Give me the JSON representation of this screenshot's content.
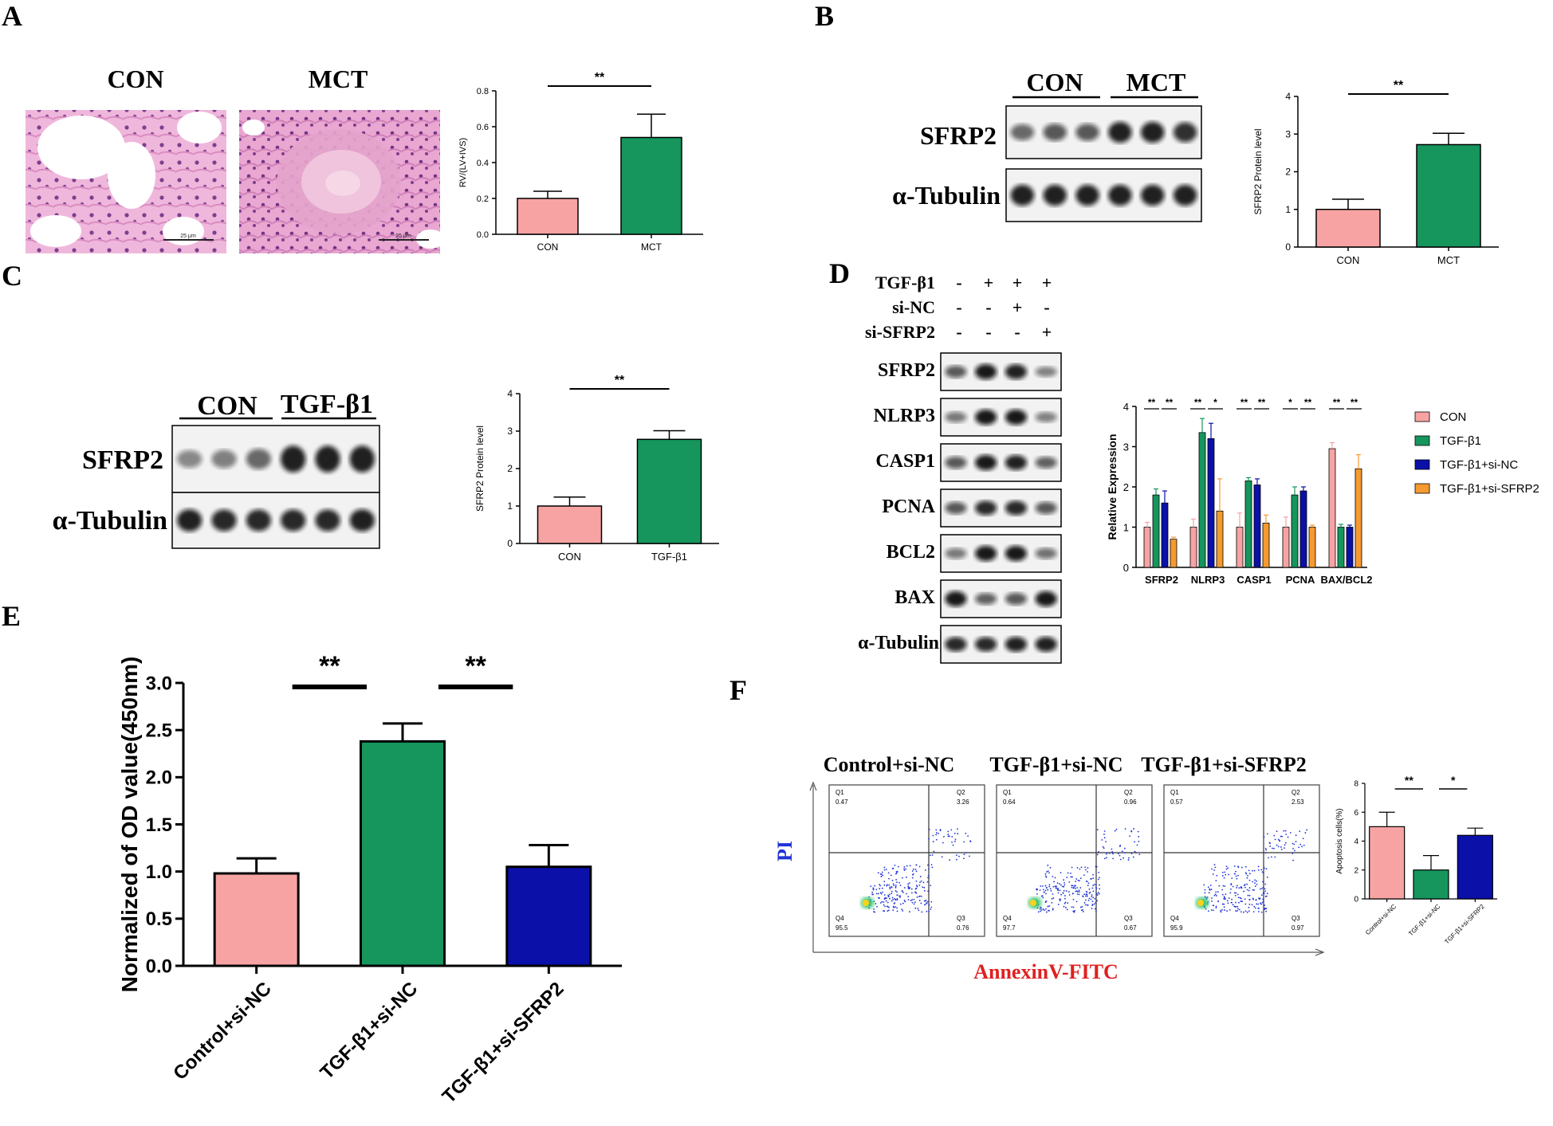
{
  "panels": {
    "A": {
      "letter": "A",
      "img_labels": [
        "CON",
        "MCT"
      ],
      "scale_bar": "25 μm"
    },
    "B": {
      "letter": "B",
      "blot_groups": [
        "CON",
        "MCT"
      ],
      "bands": [
        "SFRP2",
        "α-Tubulin"
      ]
    },
    "C": {
      "letter": "C",
      "blot_groups": [
        "CON",
        "TGF-β1"
      ],
      "bands": [
        "SFRP2",
        "α-Tubulin"
      ]
    },
    "D": {
      "letter": "D",
      "treat_rows": [
        {
          "label": "TGF-β1",
          "signs": [
            "-",
            "+",
            "+",
            "+"
          ]
        },
        {
          "label": "si-NC",
          "signs": [
            "-",
            "-",
            "+",
            "-"
          ]
        },
        {
          "label": "si-SFRP2",
          "signs": [
            "-",
            "-",
            "-",
            "+"
          ]
        }
      ],
      "bands": [
        "SFRP2",
        "NLRP3",
        "CASP1",
        "PCNA",
        "BCL2",
        "BAX",
        "α-Tubulin"
      ]
    },
    "E": {
      "letter": "E"
    },
    "F": {
      "letter": "F",
      "flow_titles": [
        "Control+si-NC",
        "TGF-β1+si-NC",
        "TGF-β1+si-SFRP2"
      ],
      "y_axis": "PI",
      "x_axis": "AnnexinV-FITC"
    }
  },
  "flow_quadrants": [
    {
      "Q1": "0.47",
      "Q2": "3.26",
      "Q3": "0.76",
      "Q4": "95.5"
    },
    {
      "Q1": "0.64",
      "Q2": "0.96",
      "Q3": "0.67",
      "Q4": "97.7"
    },
    {
      "Q1": "0.57",
      "Q2": "2.53",
      "Q3": "0.97",
      "Q4": "95.9"
    }
  ],
  "colors": {
    "pink": "#f7a3a3",
    "green": "#16955d",
    "navy": "#0b10a8",
    "orange": "#f59a30",
    "flow_blue": "#1f33d6",
    "flow_red": "#e02020"
  },
  "chart_data": [
    {
      "id": "chartA",
      "type": "bar",
      "title": "",
      "xlabel": "",
      "ylabel": "RV/(LV+IVS)",
      "categories": [
        "CON",
        "MCT"
      ],
      "values": [
        0.2,
        0.54
      ],
      "errors": [
        0.04,
        0.13
      ],
      "ylim": [
        0,
        0.8
      ],
      "yticks": [
        0.0,
        0.2,
        0.4,
        0.6,
        0.8
      ],
      "ytick_labels": [
        "0.0",
        "0.2",
        "0.4",
        "0.6",
        "0.8"
      ],
      "colors": [
        "#f7a3a3",
        "#16955d"
      ],
      "significance": [
        {
          "from": 0,
          "to": 1,
          "label": "**"
        }
      ]
    },
    {
      "id": "chartB",
      "type": "bar",
      "title": "",
      "xlabel": "",
      "ylabel": "SFRP2 Protein level",
      "categories": [
        "CON",
        "MCT"
      ],
      "values": [
        1.0,
        2.72
      ],
      "errors": [
        0.27,
        0.3
      ],
      "ylim": [
        0,
        4
      ],
      "yticks": [
        0,
        1,
        2,
        3,
        4
      ],
      "ytick_labels": [
        "0",
        "1",
        "2",
        "3",
        "4"
      ],
      "colors": [
        "#f7a3a3",
        "#16955d"
      ],
      "significance": [
        {
          "from": 0,
          "to": 1,
          "label": "**"
        }
      ]
    },
    {
      "id": "chartC",
      "type": "bar",
      "title": "",
      "xlabel": "",
      "ylabel": "SFRP2 Protein level",
      "categories": [
        "CON",
        "TGF-β1"
      ],
      "values": [
        1.0,
        2.78
      ],
      "errors": [
        0.24,
        0.23
      ],
      "ylim": [
        0,
        4
      ],
      "yticks": [
        0,
        1,
        2,
        3,
        4
      ],
      "ytick_labels": [
        "0",
        "1",
        "2",
        "3",
        "4"
      ],
      "colors": [
        "#f7a3a3",
        "#16955d"
      ],
      "significance": [
        {
          "from": 0,
          "to": 1,
          "label": "**"
        }
      ]
    },
    {
      "id": "chartD",
      "type": "bar",
      "title": "",
      "xlabel": "",
      "ylabel": "Relative Expression",
      "categories": [
        "SFRP2",
        "NLRP3",
        "CASP1",
        "PCNA",
        "BAX/BCL2"
      ],
      "series": [
        {
          "name": "CON",
          "values": [
            1.0,
            1.0,
            1.0,
            1.0,
            2.95
          ],
          "errors": [
            0.12,
            0.2,
            0.35,
            0.25,
            0.15
          ]
        },
        {
          "name": "TGF-β1",
          "values": [
            1.8,
            3.35,
            2.15,
            1.8,
            1.0
          ],
          "errors": [
            0.15,
            0.35,
            0.08,
            0.2,
            0.07
          ]
        },
        {
          "name": "TGF-β1+si-NC",
          "values": [
            1.6,
            3.2,
            2.05,
            1.9,
            1.0
          ],
          "errors": [
            0.3,
            0.38,
            0.15,
            0.1,
            0.05
          ]
        },
        {
          "name": "TGF-β1+si-SFRP2",
          "values": [
            0.7,
            1.4,
            1.1,
            1.0,
            2.45
          ],
          "errors": [
            0.05,
            0.8,
            0.2,
            0.05,
            0.35
          ]
        }
      ],
      "ylim": [
        0,
        4
      ],
      "yticks": [
        0,
        1,
        2,
        3,
        4
      ],
      "ytick_labels": [
        "0",
        "1",
        "2",
        "3",
        "4"
      ],
      "significance": [
        {
          "category": 0,
          "labels": [
            "**",
            "**"
          ]
        },
        {
          "category": 1,
          "labels": [
            "**",
            "*"
          ]
        },
        {
          "category": 2,
          "labels": [
            "**",
            "**"
          ]
        },
        {
          "category": 3,
          "labels": [
            "*",
            "**"
          ]
        },
        {
          "category": 4,
          "labels": [
            "**",
            "**"
          ]
        }
      ]
    },
    {
      "id": "chartE",
      "type": "bar",
      "title": "",
      "xlabel": "",
      "ylabel": "Normalized of OD value(450nm)",
      "categories": [
        "Control+si-NC",
        "TGF-β1+si-NC",
        "TGF-β1+si-SFRP2"
      ],
      "values": [
        0.98,
        2.38,
        1.05
      ],
      "errors": [
        0.16,
        0.19,
        0.23
      ],
      "ylim": [
        0,
        3.0
      ],
      "yticks": [
        0,
        0.5,
        1.0,
        1.5,
        2.0,
        2.5,
        3.0
      ],
      "ytick_labels": [
        "0.0",
        "0.5",
        "1.0",
        "1.5",
        "2.0",
        "2.5",
        "3.0"
      ],
      "colors": [
        "#f7a3a3",
        "#16955d",
        "#0b10a8"
      ],
      "significance": [
        {
          "from": 0,
          "to": 1,
          "label": "**"
        },
        {
          "from": 1,
          "to": 2,
          "label": "**"
        }
      ]
    },
    {
      "id": "chartF",
      "type": "bar",
      "title": "",
      "xlabel": "",
      "ylabel": "Apoptosis cells(%)",
      "categories": [
        "Control+si-NC",
        "TGF-β1+si-NC",
        "TGF-β1+si-SFRP2"
      ],
      "values": [
        5.0,
        2.0,
        4.4
      ],
      "errors": [
        1.0,
        1.0,
        0.5
      ],
      "ylim": [
        0,
        8
      ],
      "yticks": [
        0,
        2,
        4,
        6,
        8
      ],
      "ytick_labels": [
        "0",
        "2",
        "4",
        "6",
        "8"
      ],
      "colors": [
        "#f7a3a3",
        "#16955d",
        "#0b10a8"
      ],
      "significance": [
        {
          "from": 0,
          "to": 1,
          "label": "**"
        },
        {
          "from": 1,
          "to": 2,
          "label": "*"
        }
      ]
    }
  ]
}
